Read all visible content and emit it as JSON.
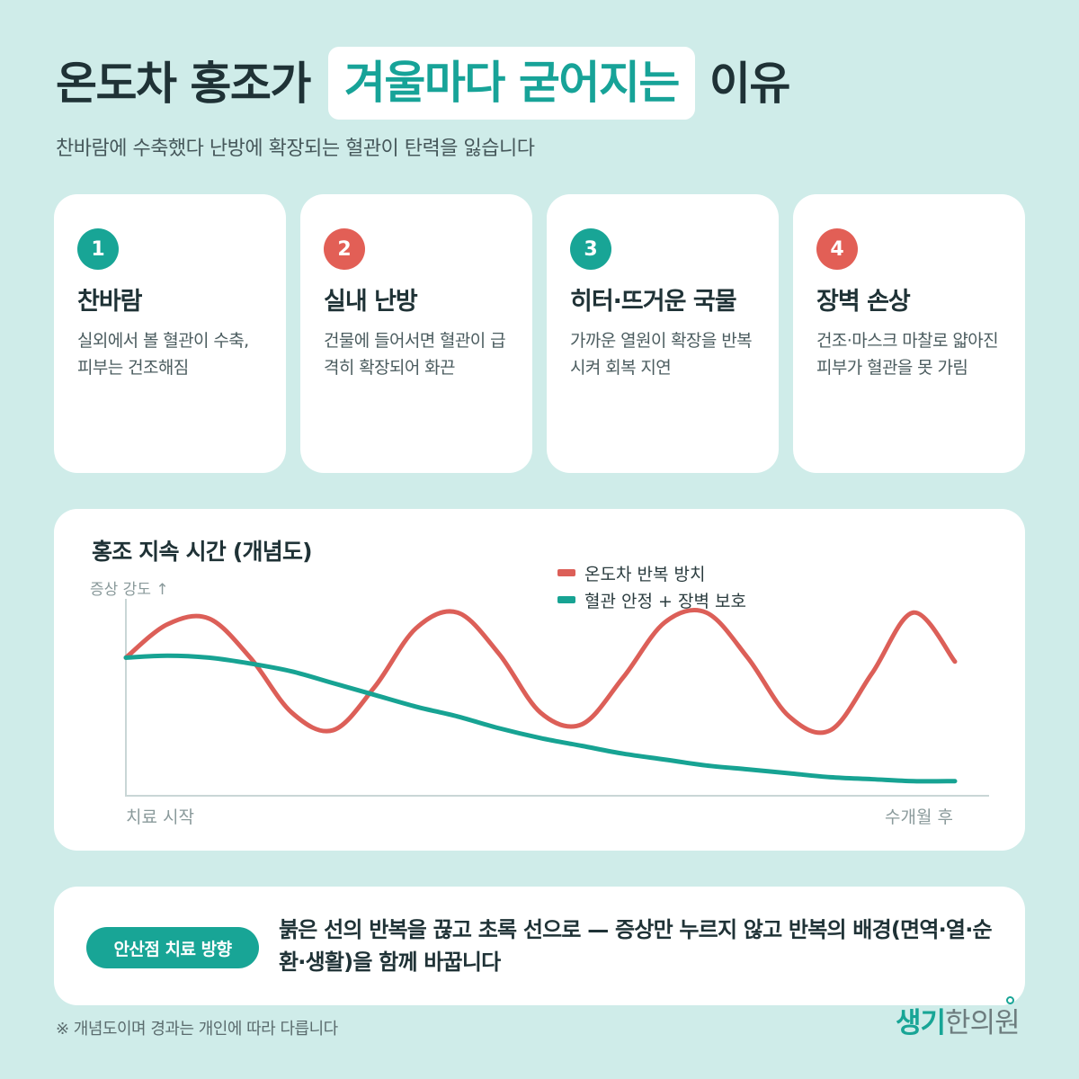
{
  "header": {
    "title_before": "온도차 홍조가",
    "title_highlight": "겨울마다 굳어지는",
    "title_after": "이유",
    "subtitle": "찬바람에 수축했다 난방에 확장되는 혈관이 탄력을 잃습니다"
  },
  "cards": [
    {
      "number": "1",
      "title": "찬바람",
      "desc": "실외에서 볼 혈관이 수축, 피부는 건조해짐",
      "color": "#18a596"
    },
    {
      "number": "2",
      "title": "실내 난방",
      "desc": "건물에 들어서면 혈관이 급격히 확장되어 화끈",
      "color": "#e25f56"
    },
    {
      "number": "3",
      "title": "히터·뜨거운 국물",
      "desc": "가까운 열원이 확장을 반복시켜 회복 지연",
      "color": "#18a596"
    },
    {
      "number": "4",
      "title": "장벽 손상",
      "desc": "건조·마스크 마찰로 얇아진 피부가 혈관을 못 가림",
      "color": "#e25f56"
    }
  ],
  "chart_data": {
    "type": "line",
    "title": "홍조 지속 시간 (개념도)",
    "ylabel": "증상 강도 ↑",
    "x_start_label": "치료 시작",
    "x_end_label": "수개월 후",
    "grid": false,
    "legend_position": "top-right",
    "series": [
      {
        "name": "온도차 반복 방치",
        "color": "#dc5f58",
        "x": [
          0,
          5,
          10,
          15,
          20,
          25,
          30,
          35,
          40,
          45,
          50,
          55,
          60,
          65,
          70,
          75,
          80,
          85,
          90,
          95,
          100
        ],
        "y": [
          70,
          87,
          90,
          70,
          42,
          33,
          55,
          85,
          93,
          72,
          42,
          36,
          60,
          88,
          93,
          70,
          40,
          33,
          62,
          93,
          68
        ]
      },
      {
        "name": "혈관 안정 + 장벽 보호",
        "color": "#17a393",
        "x": [
          0,
          5,
          10,
          15,
          20,
          25,
          30,
          35,
          40,
          45,
          50,
          55,
          60,
          65,
          70,
          75,
          80,
          85,
          90,
          95,
          100
        ],
        "y": [
          70,
          71,
          70,
          67,
          63,
          57,
          51,
          45,
          40,
          34,
          29,
          25,
          21,
          18,
          15,
          13,
          11,
          9,
          8,
          7,
          7
        ]
      }
    ],
    "ylim": [
      0,
      100
    ],
    "xlim": [
      0,
      100
    ]
  },
  "tip": {
    "label": "안산점 치료 방향",
    "text": "붉은 선의 반복을 끊고 초록 선으로 — 증상만 누르지 않고 반복의 배경(면역·열·순환·생활)을 함께 바꿉니다"
  },
  "footnote": "※ 개념도이며 경과는 개인에 따라 다릅니다",
  "logo": {
    "part_a": "생기",
    "part_b": "한의원",
    "accent_color": "#18a596"
  }
}
